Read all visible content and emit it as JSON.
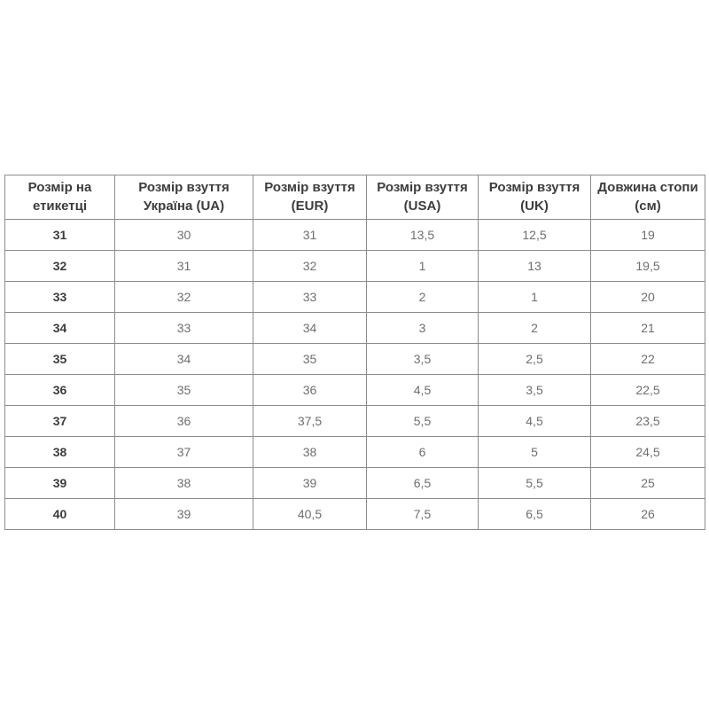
{
  "page": {
    "background_color": "#ffffff"
  },
  "table": {
    "colors": {
      "border": "#8c8c8c",
      "header_text": "#3c3c3c",
      "cell_text": "#6e6e6e",
      "row_label_text": "#3c3c3c"
    },
    "columns": [
      {
        "id": "label",
        "header": "Розмір на етикетці"
      },
      {
        "id": "ua",
        "header": "Розмір взуття Україна (UA)"
      },
      {
        "id": "eur",
        "header": "Розмір взуття (EUR)"
      },
      {
        "id": "usa",
        "header": "Розмір взуття (USA)"
      },
      {
        "id": "uk",
        "header": "Розмір взуття (UK)"
      },
      {
        "id": "foot",
        "header": "Довжина стопи (см)"
      }
    ],
    "rows": [
      [
        "31",
        "30",
        "31",
        "13,5",
        "12,5",
        "19"
      ],
      [
        "32",
        "31",
        "32",
        "1",
        "13",
        "19,5"
      ],
      [
        "33",
        "32",
        "33",
        "2",
        "1",
        "20"
      ],
      [
        "34",
        "33",
        "34",
        "3",
        "2",
        "21"
      ],
      [
        "35",
        "34",
        "35",
        "3,5",
        "2,5",
        "22"
      ],
      [
        "36",
        "35",
        "36",
        "4,5",
        "3,5",
        "22,5"
      ],
      [
        "37",
        "36",
        "37,5",
        "5,5",
        "4,5",
        "23,5"
      ],
      [
        "38",
        "37",
        "38",
        "6",
        "5",
        "24,5"
      ],
      [
        "39",
        "38",
        "39",
        "6,5",
        "5,5",
        "25"
      ],
      [
        "40",
        "39",
        "40,5",
        "7,5",
        "6,5",
        "26"
      ]
    ]
  },
  "chart_data": {
    "type": "table",
    "title": "",
    "columns": [
      "Розмір на етикетці",
      "Розмір взуття Україна (UA)",
      "Розмір взуття (EUR)",
      "Розмір взуття (USA)",
      "Розмір взуття (UK)",
      "Довжина стопи (см)"
    ],
    "rows": [
      [
        "31",
        "30",
        "31",
        "13,5",
        "12,5",
        "19"
      ],
      [
        "32",
        "31",
        "32",
        "1",
        "13",
        "19,5"
      ],
      [
        "33",
        "32",
        "33",
        "2",
        "1",
        "20"
      ],
      [
        "34",
        "33",
        "34",
        "3",
        "2",
        "21"
      ],
      [
        "35",
        "34",
        "35",
        "3,5",
        "2,5",
        "22"
      ],
      [
        "36",
        "35",
        "36",
        "4,5",
        "3,5",
        "22,5"
      ],
      [
        "37",
        "36",
        "37,5",
        "5,5",
        "4,5",
        "23,5"
      ],
      [
        "38",
        "37",
        "38",
        "6",
        "5",
        "24,5"
      ],
      [
        "39",
        "38",
        "39",
        "6,5",
        "5,5",
        "25"
      ],
      [
        "40",
        "39",
        "40,5",
        "7,5",
        "6,5",
        "26"
      ]
    ]
  }
}
